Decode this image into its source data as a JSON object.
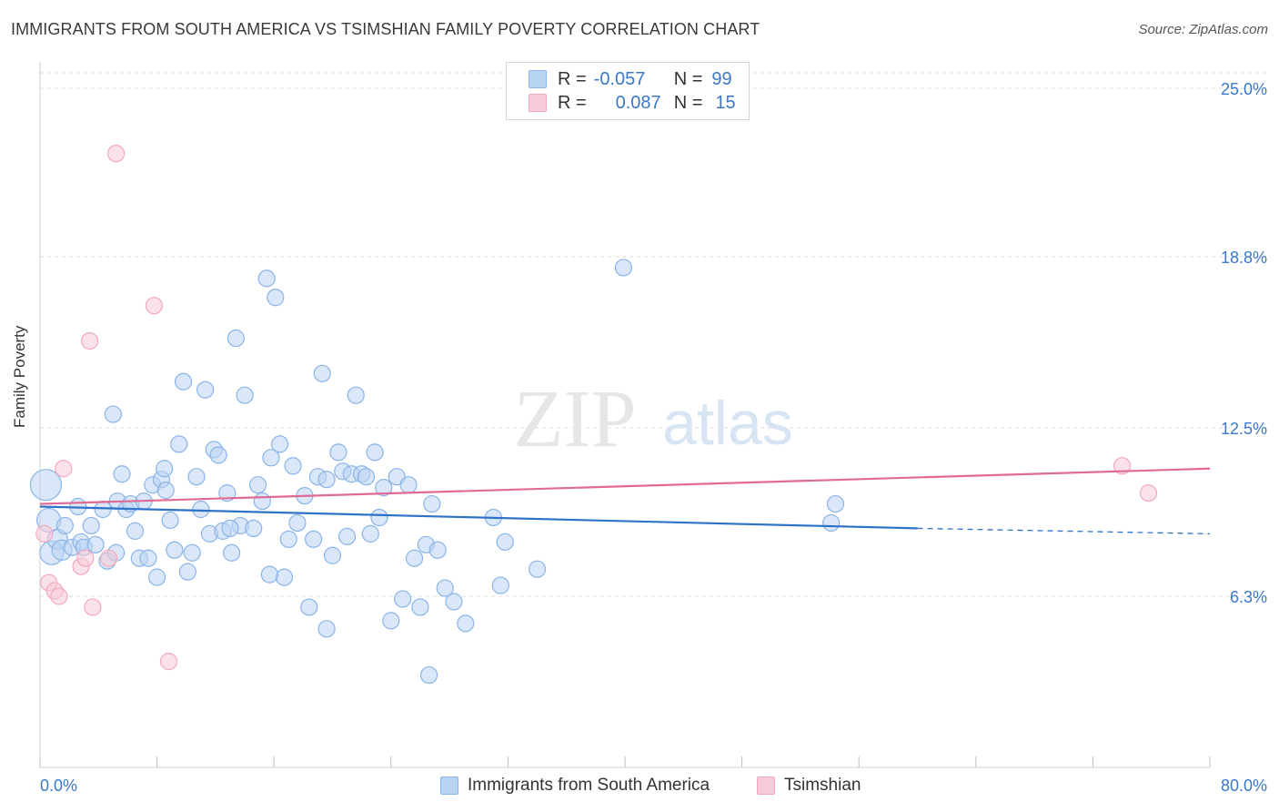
{
  "title": "IMMIGRANTS FROM SOUTH AMERICA VS TSIMSHIAN FAMILY POVERTY CORRELATION CHART",
  "source": "Source: ZipAtlas.com",
  "watermark": {
    "zip": "ZIP",
    "atlas": "atlas"
  },
  "legend": {
    "r_label": "R =",
    "n_label": "N =",
    "series": [
      {
        "name": "Immigrants from South America",
        "r": "-0.057",
        "n": "99",
        "color": "#8ab4e8",
        "fill": "#b9d4f3",
        "line": "#2e72c8"
      },
      {
        "name": "Tsimshian",
        "r": "0.087",
        "n": "15",
        "color": "#f2a8bd",
        "fill": "#f8cad7",
        "line": "#e06a93"
      }
    ]
  },
  "chart_data": {
    "type": "scatter",
    "title": "IMMIGRANTS FROM SOUTH AMERICA VS TSIMSHIAN FAMILY POVERTY CORRELATION CHART",
    "xlabel": "",
    "ylabel": "Family Poverty",
    "xlim": [
      0,
      80
    ],
    "ylim": [
      0,
      25.0
    ],
    "x_tick_labels": [
      "0.0%",
      "80.0%"
    ],
    "y_tick_values": [
      6.3,
      12.5,
      18.8,
      25.0
    ],
    "y_tick_labels": [
      "6.3%",
      "12.5%",
      "18.8%",
      "25.0%"
    ],
    "grid": true,
    "legend_position": "top-center",
    "series": [
      {
        "name": "Immigrants from South America",
        "trend": {
          "x0": 0,
          "y0": 9.6,
          "x1": 60,
          "y1": 8.8,
          "dash_to": 80,
          "dash_y": 8.6
        },
        "points": [
          [
            0.4,
            10.4
          ],
          [
            0.6,
            9.1
          ],
          [
            0.8,
            7.9
          ],
          [
            1.2,
            8.4
          ],
          [
            1.5,
            8.0
          ],
          [
            1.7,
            8.9
          ],
          [
            2.2,
            8.1
          ],
          [
            2.6,
            9.6
          ],
          [
            2.8,
            8.3
          ],
          [
            3.0,
            8.1
          ],
          [
            3.5,
            8.9
          ],
          [
            3.8,
            8.2
          ],
          [
            4.3,
            9.5
          ],
          [
            4.6,
            7.6
          ],
          [
            5.0,
            13.0
          ],
          [
            5.3,
            9.8
          ],
          [
            5.6,
            10.8
          ],
          [
            5.9,
            9.5
          ],
          [
            6.2,
            9.7
          ],
          [
            6.5,
            8.7
          ],
          [
            6.8,
            7.7
          ],
          [
            7.1,
            9.8
          ],
          [
            7.4,
            7.7
          ],
          [
            7.7,
            10.4
          ],
          [
            8.0,
            7.0
          ],
          [
            8.3,
            10.6
          ],
          [
            8.6,
            10.2
          ],
          [
            8.9,
            9.1
          ],
          [
            9.2,
            8.0
          ],
          [
            9.5,
            11.9
          ],
          [
            9.8,
            14.2
          ],
          [
            10.1,
            7.2
          ],
          [
            10.4,
            7.9
          ],
          [
            10.7,
            10.7
          ],
          [
            11.0,
            9.5
          ],
          [
            11.3,
            13.9
          ],
          [
            11.6,
            8.6
          ],
          [
            11.9,
            11.7
          ],
          [
            12.2,
            11.5
          ],
          [
            12.5,
            8.7
          ],
          [
            12.8,
            10.1
          ],
          [
            13.1,
            7.9
          ],
          [
            13.4,
            15.8
          ],
          [
            13.7,
            8.9
          ],
          [
            14.0,
            13.7
          ],
          [
            14.6,
            8.8
          ],
          [
            14.9,
            10.4
          ],
          [
            15.2,
            9.8
          ],
          [
            15.5,
            18.0
          ],
          [
            15.8,
            11.4
          ],
          [
            16.1,
            17.3
          ],
          [
            16.4,
            11.9
          ],
          [
            16.7,
            7.0
          ],
          [
            17.0,
            8.4
          ],
          [
            17.3,
            11.1
          ],
          [
            17.6,
            9.0
          ],
          [
            18.1,
            10.0
          ],
          [
            18.4,
            5.9
          ],
          [
            18.7,
            8.4
          ],
          [
            19.0,
            10.7
          ],
          [
            19.3,
            14.5
          ],
          [
            19.6,
            10.6
          ],
          [
            20.0,
            7.8
          ],
          [
            20.4,
            11.6
          ],
          [
            20.7,
            10.9
          ],
          [
            21.0,
            8.5
          ],
          [
            21.3,
            10.8
          ],
          [
            21.6,
            13.7
          ],
          [
            22.0,
            10.8
          ],
          [
            22.3,
            10.7
          ],
          [
            22.6,
            8.6
          ],
          [
            22.9,
            11.6
          ],
          [
            23.2,
            9.2
          ],
          [
            23.5,
            10.3
          ],
          [
            24.0,
            5.4
          ],
          [
            24.4,
            10.7
          ],
          [
            24.8,
            6.2
          ],
          [
            25.2,
            10.4
          ],
          [
            25.6,
            7.7
          ],
          [
            26.0,
            5.9
          ],
          [
            26.4,
            8.2
          ],
          [
            26.8,
            9.7
          ],
          [
            27.2,
            8.0
          ],
          [
            27.7,
            6.6
          ],
          [
            28.3,
            6.1
          ],
          [
            29.1,
            5.3
          ],
          [
            31.0,
            9.2
          ],
          [
            31.5,
            6.7
          ],
          [
            31.8,
            8.3
          ],
          [
            34.0,
            7.3
          ],
          [
            39.9,
            18.4
          ],
          [
            54.1,
            9.0
          ],
          [
            54.4,
            9.7
          ],
          [
            19.6,
            5.1
          ],
          [
            26.6,
            3.4
          ],
          [
            15.7,
            7.1
          ],
          [
            8.5,
            11.0
          ],
          [
            5.2,
            7.9
          ],
          [
            13.0,
            8.8
          ]
        ]
      },
      {
        "name": "Tsimshian",
        "trend": {
          "x0": 0,
          "y0": 9.7,
          "x1": 80,
          "y1": 11.0
        },
        "points": [
          [
            0.3,
            8.6
          ],
          [
            0.6,
            6.8
          ],
          [
            1.0,
            6.5
          ],
          [
            1.3,
            6.3
          ],
          [
            1.6,
            11.0
          ],
          [
            2.8,
            7.4
          ],
          [
            3.1,
            7.7
          ],
          [
            3.4,
            15.7
          ],
          [
            3.6,
            5.9
          ],
          [
            4.7,
            7.7
          ],
          [
            5.2,
            22.6
          ],
          [
            7.8,
            17.0
          ],
          [
            8.8,
            3.9
          ],
          [
            74.0,
            11.1
          ],
          [
            75.8,
            10.1
          ]
        ]
      }
    ]
  }
}
